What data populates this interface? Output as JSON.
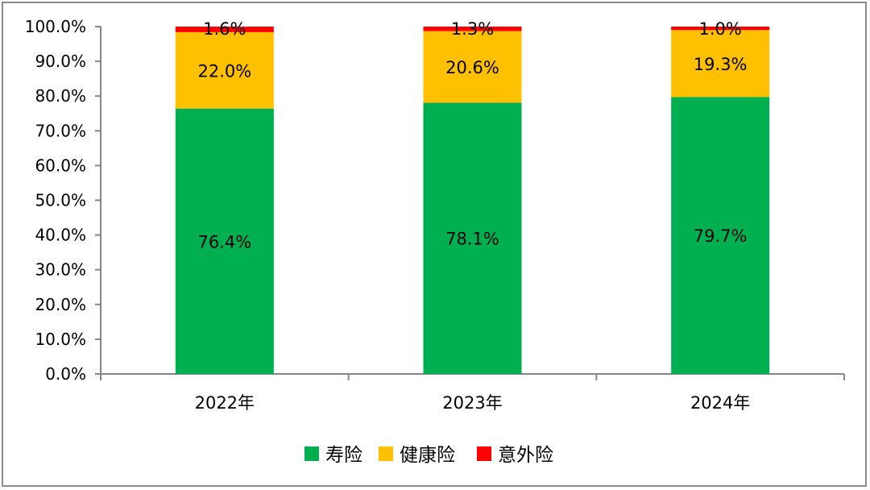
{
  "chart_data": {
    "type": "stacked-bar-100",
    "categories": [
      "2022年",
      "2023年",
      "2024年"
    ],
    "series": [
      {
        "name": "寿险",
        "color": "#00B050",
        "values": [
          76.4,
          78.1,
          79.7
        ],
        "labels": [
          "76.4%",
          "78.1%",
          "79.7%"
        ]
      },
      {
        "name": "健康险",
        "color": "#FFC000",
        "values": [
          22.0,
          20.6,
          19.3
        ],
        "labels": [
          "22.0%",
          "20.6%",
          "19.3%"
        ]
      },
      {
        "name": "意外险",
        "color": "#FF0000",
        "values": [
          1.6,
          1.3,
          1.0
        ],
        "labels": [
          "1.6%",
          "1.3%",
          "1.0%"
        ]
      }
    ],
    "ylim": [
      0,
      100
    ],
    "yticks": [
      "0.0%",
      "10.0%",
      "20.0%",
      "30.0%",
      "40.0%",
      "50.0%",
      "60.0%",
      "70.0%",
      "80.0%",
      "90.0%",
      "100.0%"
    ],
    "grid": false,
    "legend": "bottom",
    "axis_color": "#868686"
  }
}
